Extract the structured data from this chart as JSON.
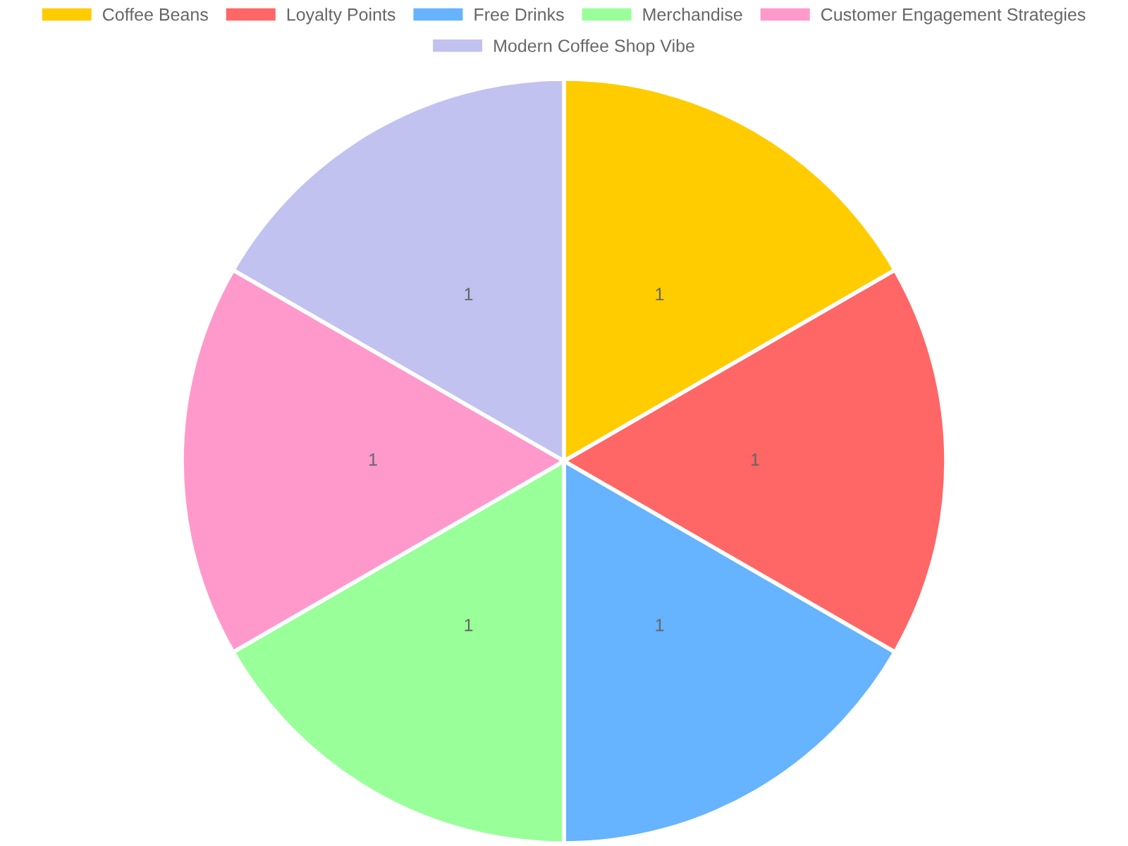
{
  "chart_data": {
    "type": "pie",
    "categories": [
      "Coffee Beans",
      "Loyalty Points",
      "Free Drinks",
      "Merchandise",
      "Customer Engagement Strategies",
      "Modern Coffee Shop Vibe"
    ],
    "values": [
      1,
      1,
      1,
      1,
      1,
      1
    ],
    "colors": [
      "#ffcc00",
      "#ff6666",
      "#66b3ff",
      "#99ff99",
      "#ff99cc",
      "#c2c2f0"
    ],
    "data_labels": true,
    "legend": "top"
  }
}
